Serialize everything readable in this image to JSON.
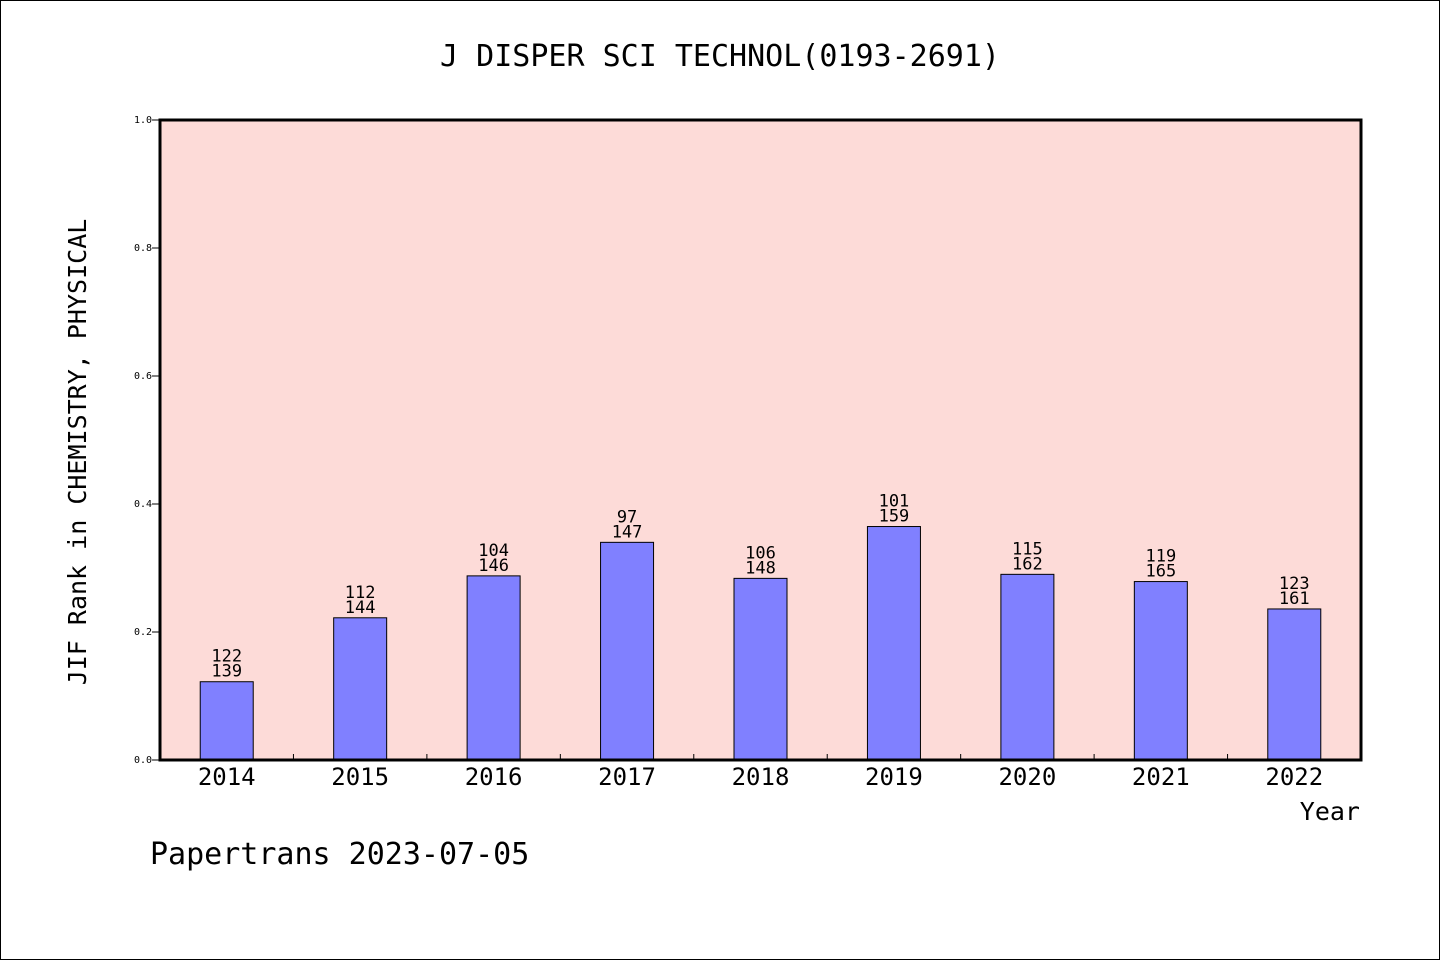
{
  "chart_data": {
    "type": "bar",
    "title": "J DISPER SCI TECHNOL(0193-2691)",
    "xlabel": "Year",
    "ylabel": "JIF Rank in CHEMISTRY, PHYSICAL",
    "ylim": [
      0,
      1.0
    ],
    "yticks": [
      "0.0",
      "0.2",
      "0.4",
      "0.6",
      "0.8",
      "1.0"
    ],
    "categories": [
      "2014",
      "2015",
      "2016",
      "2017",
      "2018",
      "2019",
      "2020",
      "2021",
      "2022"
    ],
    "values": [
      0.1223,
      0.2222,
      0.2877,
      0.3401,
      0.2838,
      0.3648,
      0.2901,
      0.2788,
      0.236
    ],
    "rank": [
      "122",
      "112",
      "104",
      "97",
      "106",
      "101",
      "115",
      "119",
      "123"
    ],
    "total": [
      "139",
      "144",
      "146",
      "147",
      "148",
      "159",
      "162",
      "165",
      "161"
    ],
    "plot_background": "#fddbd8",
    "bar_color": "#8080ff",
    "grid": false
  },
  "footer": "Papertrans 2023-07-05"
}
